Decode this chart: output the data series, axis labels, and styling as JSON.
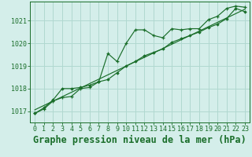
{
  "title": "Graphe pression niveau de la mer (hPa)",
  "bg_color": "#d4eeea",
  "grid_color": "#b0d8d0",
  "line_color": "#1a6e2a",
  "xlim": [
    -0.5,
    23.5
  ],
  "ylim": [
    1016.5,
    1021.85
  ],
  "yticks": [
    1017,
    1018,
    1019,
    1020,
    1021
  ],
  "xticks": [
    0,
    1,
    2,
    3,
    4,
    5,
    6,
    7,
    8,
    9,
    10,
    11,
    12,
    13,
    14,
    15,
    16,
    17,
    18,
    19,
    20,
    21,
    22,
    23
  ],
  "series1": [
    1016.9,
    1017.1,
    1017.45,
    1017.6,
    1017.65,
    1018.0,
    1018.05,
    1018.3,
    1019.55,
    1019.2,
    1020.0,
    1020.6,
    1020.6,
    1020.35,
    1020.25,
    1020.65,
    1020.6,
    1020.65,
    1020.65,
    1021.05,
    1021.2,
    1021.55,
    1021.65,
    1021.6
  ],
  "series2": [
    1016.9,
    1017.15,
    1017.5,
    1018.0,
    1018.0,
    1018.05,
    1018.15,
    1018.3,
    1018.4,
    1018.7,
    1019.0,
    1019.2,
    1019.45,
    1019.6,
    1019.75,
    1020.05,
    1020.2,
    1020.35,
    1020.5,
    1020.7,
    1020.85,
    1021.1,
    1021.55,
    1021.4
  ],
  "title_fontsize": 8.5,
  "tick_fontsize": 6.0
}
